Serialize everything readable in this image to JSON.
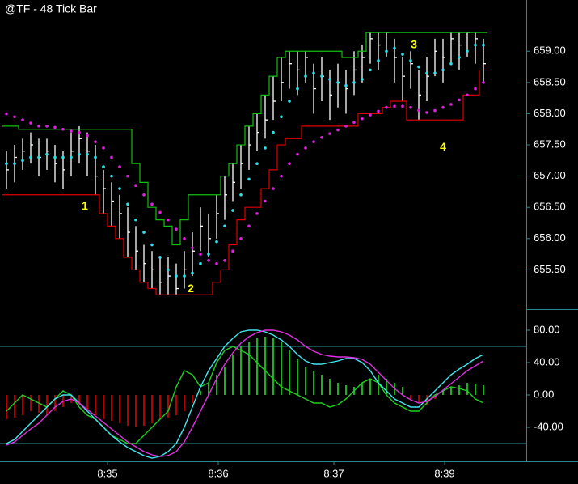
{
  "chart_data": [
    {
      "type": "ohlc",
      "title": "@TF - 48 Tick Bar",
      "bars": {
        "color": "#ffffff",
        "high": [
          657.4,
          657.5,
          657.6,
          657.7,
          657.6,
          657.6,
          657.5,
          657.4,
          657.7,
          657.8,
          657.7,
          657.5,
          657.1,
          656.9,
          656.7,
          656.5,
          656.2,
          655.9,
          655.8,
          655.7,
          655.7,
          655.6,
          655.8,
          656.1,
          656.5,
          656.4,
          656.7,
          657.0,
          657.2,
          657.5,
          657.8,
          658.0,
          658.3,
          658.6,
          658.9,
          659.0,
          659.0,
          659.0,
          658.8,
          658.9,
          658.7,
          658.8,
          658.7,
          659.0,
          659.1,
          659.3,
          659.3,
          659.3,
          659.2,
          658.9,
          659.0,
          658.7,
          658.9,
          659.2,
          659.2,
          659.3,
          659.3,
          659.3,
          659.3,
          659.2
        ],
        "low": [
          656.8,
          656.9,
          657.1,
          657.2,
          657.0,
          657.1,
          656.9,
          656.8,
          657.0,
          657.2,
          657.0,
          656.7,
          656.4,
          656.2,
          656.0,
          655.7,
          655.5,
          655.3,
          655.2,
          655.1,
          655.1,
          655.1,
          655.2,
          655.4,
          655.8,
          655.7,
          656.0,
          656.3,
          656.6,
          656.8,
          657.1,
          657.4,
          657.6,
          657.9,
          658.2,
          658.4,
          658.3,
          658.5,
          658.0,
          658.2,
          657.9,
          658.1,
          658.0,
          658.3,
          658.5,
          658.8,
          658.7,
          658.9,
          658.5,
          658.2,
          658.4,
          657.9,
          658.2,
          658.6,
          658.5,
          658.8,
          658.7,
          658.9,
          658.8,
          658.5
        ],
        "close": [
          657.1,
          657.3,
          657.4,
          657.5,
          657.3,
          657.4,
          657.2,
          657.1,
          657.4,
          657.6,
          657.4,
          657.0,
          656.8,
          656.6,
          656.4,
          656.1,
          655.8,
          655.6,
          655.5,
          655.3,
          655.4,
          655.2,
          655.5,
          655.8,
          656.2,
          656.0,
          656.4,
          656.7,
          656.9,
          657.2,
          657.5,
          657.7,
          657.9,
          658.2,
          658.5,
          658.8,
          658.7,
          658.9,
          658.4,
          658.6,
          658.3,
          658.5,
          658.4,
          658.7,
          658.9,
          659.2,
          659.1,
          659.3,
          658.9,
          658.6,
          658.8,
          658.3,
          658.6,
          659.0,
          658.9,
          659.2,
          659.1,
          659.3,
          659.2,
          658.8
        ]
      },
      "series": [
        {
          "color": "#10c010",
          "style": "step",
          "values": [
            657.8,
            657.8,
            657.75,
            657.75,
            657.75,
            657.75,
            657.75,
            657.75,
            657.75,
            657.75,
            657.75,
            657.75,
            657.75,
            657.75,
            657.75,
            657.75,
            657.2,
            656.9,
            656.5,
            656.3,
            656.2,
            655.9,
            656.3,
            656.7,
            656.7,
            656.7,
            656.7,
            657.0,
            657.2,
            657.5,
            657.8,
            658.0,
            658.3,
            658.6,
            658.9,
            659.0,
            659.0,
            659.0,
            659.0,
            659.0,
            659.0,
            659.0,
            658.9,
            658.9,
            659.0,
            659.3,
            659.3,
            659.3,
            659.3,
            659.3,
            659.3,
            659.3,
            659.3,
            659.3,
            659.3,
            659.3,
            659.3,
            659.3,
            659.3,
            659.3
          ]
        },
        {
          "color": "#e00000",
          "style": "step",
          "values": [
            656.7,
            656.7,
            656.7,
            656.7,
            656.7,
            656.7,
            656.7,
            656.7,
            656.7,
            656.7,
            656.7,
            656.7,
            656.4,
            656.2,
            656.0,
            655.7,
            655.5,
            655.3,
            655.2,
            655.1,
            655.1,
            655.1,
            655.1,
            655.1,
            655.1,
            655.1,
            655.3,
            655.5,
            655.9,
            656.3,
            656.5,
            656.5,
            656.8,
            657.1,
            657.5,
            657.6,
            657.6,
            657.8,
            657.8,
            657.8,
            657.8,
            657.8,
            657.8,
            657.8,
            658.0,
            658.0,
            658.0,
            658.1,
            658.2,
            658.2,
            657.9,
            657.9,
            657.9,
            657.9,
            657.9,
            657.9,
            657.9,
            658.3,
            658.3,
            658.7
          ]
        },
        {
          "color": "#30e0e8",
          "style": "dots",
          "values": [
            657.2,
            657.2,
            657.25,
            657.3,
            657.3,
            657.35,
            657.3,
            657.3,
            657.3,
            657.35,
            657.35,
            657.3,
            657.15,
            657.0,
            656.8,
            656.55,
            656.3,
            656.1,
            655.9,
            655.7,
            655.5,
            655.4,
            655.4,
            655.45,
            655.6,
            655.75,
            655.95,
            656.2,
            656.45,
            656.7,
            656.95,
            657.2,
            657.45,
            657.7,
            657.95,
            658.2,
            658.4,
            658.6,
            658.65,
            658.6,
            658.55,
            658.5,
            658.45,
            658.5,
            658.55,
            658.7,
            658.85,
            659.0,
            659.05,
            658.95,
            658.85,
            658.75,
            658.65,
            658.65,
            658.7,
            658.8,
            658.9,
            659.0,
            659.1,
            659.1
          ]
        },
        {
          "color": "#e020e0",
          "style": "dots",
          "values": [
            658.0,
            657.95,
            657.9,
            657.85,
            657.8,
            657.8,
            657.78,
            657.75,
            657.72,
            657.7,
            657.65,
            657.55,
            657.45,
            657.3,
            657.15,
            657.0,
            656.85,
            656.7,
            656.55,
            656.42,
            656.3,
            656.15,
            656.0,
            655.85,
            655.75,
            655.65,
            655.6,
            655.65,
            655.8,
            656.0,
            656.2,
            656.4,
            656.6,
            656.8,
            657.0,
            657.2,
            657.35,
            657.45,
            657.55,
            657.62,
            657.68,
            657.74,
            657.8,
            657.86,
            657.92,
            657.98,
            658.04,
            658.1,
            658.12,
            658.12,
            658.1,
            658.05,
            658.02,
            658.05,
            658.1,
            658.15,
            658.22,
            658.3,
            658.4,
            658.5
          ]
        }
      ],
      "xlim": [
        -0.5,
        59.5
      ],
      "ylim": [
        654.87,
        659.82
      ],
      "yticks": [
        {
          "value": 655.5,
          "label": "655.50"
        },
        {
          "value": 656,
          "label": "656.00"
        },
        {
          "value": 656.5,
          "label": "656.50"
        },
        {
          "value": 657,
          "label": "657.00"
        },
        {
          "value": 657.5,
          "label": "657.50"
        },
        {
          "value": 658,
          "label": "658.00"
        },
        {
          "value": 658.5,
          "label": "658.50"
        },
        {
          "value": 659,
          "label": "659.00"
        }
      ],
      "annotation_color": "#ffff00",
      "annotations": [
        {
          "text": "1",
          "x": 9.7,
          "y": 656.51
        },
        {
          "text": "2",
          "x": 22.8,
          "y": 655.19
        },
        {
          "text": "3",
          "x": 50.4,
          "y": 659.1
        },
        {
          "text": "4",
          "x": 54,
          "y": 657.46
        }
      ]
    },
    {
      "type": "oscillator",
      "histogram": {
        "positive": "#20e020",
        "negative": "#e00000",
        "values": [
          -30,
          -28,
          -25,
          -20,
          -22,
          -25,
          -20,
          -15,
          -10,
          -12,
          -18,
          -25,
          -30,
          -32,
          -35,
          -38,
          -40,
          -38,
          -35,
          -30,
          -28,
          -25,
          -20,
          -10,
          5,
          15,
          25,
          35,
          50,
          60,
          65,
          70,
          72,
          70,
          65,
          55,
          45,
          35,
          30,
          25,
          20,
          15,
          12,
          10,
          15,
          20,
          25,
          20,
          15,
          10,
          -5,
          -10,
          -12,
          -5,
          5,
          10,
          12,
          15,
          14,
          12
        ]
      },
      "series": [
        {
          "color": "#20d020",
          "values": [
            -20,
            -10,
            0,
            -5,
            -10,
            -15,
            -5,
            5,
            0,
            -15,
            -25,
            -30,
            -40,
            -50,
            -55,
            -60,
            -60,
            -50,
            -40,
            -30,
            -20,
            10,
            30,
            25,
            10,
            15,
            40,
            55,
            60,
            55,
            50,
            40,
            30,
            20,
            10,
            5,
            0,
            -5,
            -10,
            -10,
            -15,
            -12,
            -5,
            5,
            15,
            20,
            15,
            0,
            -10,
            -15,
            -20,
            -20,
            -10,
            0,
            5,
            10,
            8,
            5,
            -5,
            -10
          ]
        },
        {
          "color": "#40e8f0",
          "values": [
            -60,
            -55,
            -45,
            -35,
            -25,
            -15,
            -5,
            0,
            0,
            -10,
            -20,
            -30,
            -40,
            -50,
            -58,
            -65,
            -70,
            -75,
            -78,
            -76,
            -70,
            -60,
            -40,
            -15,
            10,
            30,
            45,
            60,
            70,
            78,
            80,
            80,
            78,
            74,
            68,
            60,
            50,
            42,
            38,
            38,
            40,
            42,
            45,
            45,
            40,
            30,
            15,
            5,
            -5,
            -10,
            -15,
            -15,
            -5,
            5,
            15,
            25,
            32,
            38,
            45,
            50
          ]
        },
        {
          "color": "#e030e0",
          "values": [
            -62,
            -58,
            -50,
            -42,
            -35,
            -25,
            -15,
            -8,
            -5,
            -10,
            -18,
            -26,
            -34,
            -42,
            -50,
            -58,
            -64,
            -70,
            -74,
            -76,
            -75,
            -70,
            -58,
            -40,
            -20,
            0,
            20,
            38,
            52,
            64,
            72,
            77,
            80,
            80,
            78,
            74,
            68,
            60,
            54,
            50,
            48,
            47,
            47,
            46,
            44,
            38,
            28,
            18,
            8,
            0,
            -6,
            -10,
            -8,
            -2,
            6,
            14,
            22,
            30,
            36,
            42
          ]
        }
      ],
      "levels": [
        60,
        -60
      ],
      "level_color": "#2a9a9a",
      "xlim": [
        -0.5,
        59.5
      ],
      "ylim": [
        -82,
        104
      ],
      "yticks": [
        {
          "value": -40,
          "label": "-40.00"
        },
        {
          "value": 0,
          "label": "0.00"
        },
        {
          "value": 40,
          "label": "40.00"
        },
        {
          "value": 80,
          "label": "80.00"
        }
      ],
      "xticks": [
        {
          "value": 12.5,
          "label": "8:35"
        },
        {
          "value": 26.2,
          "label": "8:36"
        },
        {
          "value": 40.5,
          "label": "8:37"
        },
        {
          "value": 54.2,
          "label": "8:39"
        }
      ]
    }
  ]
}
